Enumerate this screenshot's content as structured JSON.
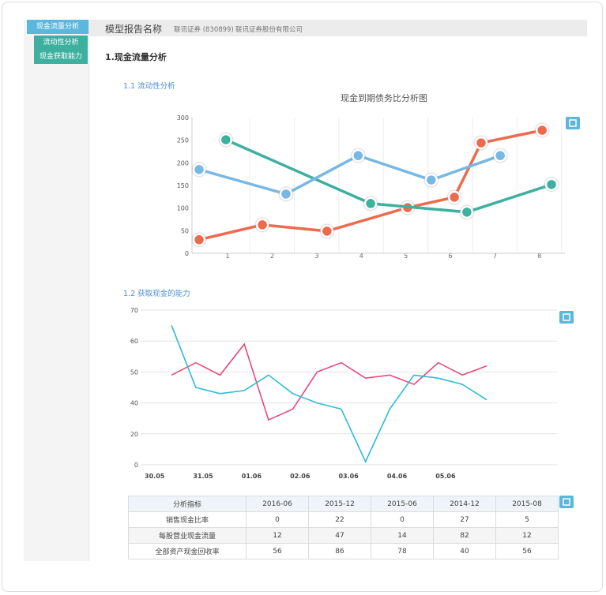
{
  "sidebar": {
    "items": [
      "现金流量分析",
      "流动性分析",
      "现金获取能力"
    ]
  },
  "header": {
    "title": "模型报告名称",
    "code": "联讯证券 (830899)",
    "company": "联讯证券股份有限公司"
  },
  "section": "1.现金流量分析",
  "subsections": [
    "1.1 流动性分析",
    "1.2 获取现金的能力"
  ],
  "chart_data": [
    {
      "type": "line",
      "title": "现金到期债务比分析图",
      "xlim": [
        0.2,
        8.5
      ],
      "xticks": [
        1,
        2,
        3,
        4,
        5,
        6,
        7,
        8
      ],
      "ylim": [
        0,
        300
      ],
      "yticks": [
        0,
        50,
        100,
        150,
        200,
        250,
        300
      ],
      "grid": true,
      "markers": true,
      "series": [
        {
          "color": "#ee6a4c",
          "x": [
            0.36,
            1.78,
            3.23,
            5.04,
            6.09,
            6.69,
            8.06
          ],
          "values": [
            30,
            63,
            49,
            101,
            124,
            244,
            272
          ]
        },
        {
          "color": "#3db0a0",
          "x": [
            0.96,
            4.21,
            6.37,
            8.27
          ],
          "values": [
            251,
            110,
            91,
            152
          ]
        },
        {
          "color": "#78b8e4",
          "x": [
            0.36,
            2.31,
            3.93,
            5.57,
            7.12
          ],
          "values": [
            185,
            131,
            216,
            162,
            216
          ]
        }
      ]
    },
    {
      "type": "line",
      "xlim": [
        -0.7,
        16.9
      ],
      "xticks": [
        {
          "value": 0.3,
          "label": "30.05"
        },
        {
          "value": 2.3,
          "label": "31.05"
        },
        {
          "value": 4.3,
          "label": "01.06"
        },
        {
          "value": 6.3,
          "label": "02.06"
        },
        {
          "value": 8.3,
          "label": "03.06"
        },
        {
          "value": 10.3,
          "label": "04.06"
        },
        {
          "value": 12.3,
          "label": "05.06"
        }
      ],
      "ylim": [
        0,
        70
      ],
      "yticks": [
        0,
        20,
        40,
        50,
        60,
        70
      ],
      "grid": true,
      "markers": false,
      "series": [
        {
          "color": "#e84a7a",
          "x": [
            1,
            2,
            3,
            4,
            5,
            6,
            7,
            8,
            9,
            10,
            11,
            12,
            13,
            14
          ],
          "values": [
            49,
            53,
            49,
            59,
            29,
            36,
            50,
            53,
            48,
            49,
            46,
            53,
            49,
            52
          ]
        },
        {
          "color": "#2bbbd8",
          "x": [
            1,
            2,
            3,
            4,
            5,
            6,
            7,
            8,
            9,
            10,
            11,
            12,
            13,
            14
          ],
          "values": [
            65,
            45,
            43,
            44,
            49,
            43,
            40,
            36,
            2,
            36,
            49,
            48,
            46,
            41
          ]
        }
      ]
    }
  ],
  "table": {
    "header": [
      "分析指标",
      "2016-06",
      "2015-12",
      "2015-06",
      "2014-12",
      "2015-08"
    ],
    "rows": [
      [
        "销售现金比率",
        0,
        22,
        0,
        27,
        5
      ],
      [
        "每股营业现金流量",
        12,
        47,
        14,
        82,
        12
      ],
      [
        "全部资产现金回收率",
        56,
        86,
        78,
        40,
        56
      ]
    ]
  }
}
